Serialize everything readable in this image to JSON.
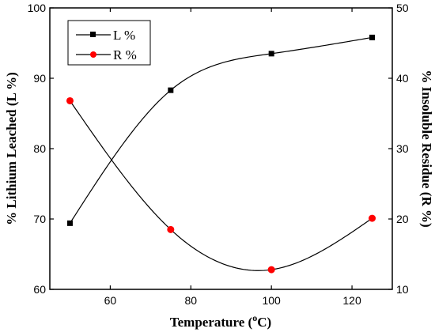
{
  "chart_data": {
    "type": "line",
    "x": [
      50,
      75,
      100,
      125
    ],
    "xlabel": "Temperature (",
    "xlabel_sup": "o",
    "xlabel_tail": "C)",
    "ylabel": "% Lithium Leached (L %)",
    "y2label": "% Insoluble Residue (R %)",
    "xlim": [
      45,
      130
    ],
    "ylim": [
      60,
      100
    ],
    "y2lim": [
      10,
      50
    ],
    "xticks": [
      60,
      80,
      100,
      120
    ],
    "yticks": [
      60,
      70,
      80,
      90,
      100
    ],
    "y2ticks": [
      10,
      20,
      30,
      40,
      50
    ],
    "grid": false,
    "legend_position": "top-left",
    "series": [
      {
        "name": "L %",
        "axis": "left",
        "marker": "square",
        "color": "#000000",
        "values": [
          69.4,
          88.3,
          93.5,
          95.8
        ]
      },
      {
        "name": "R %",
        "axis": "right",
        "marker": "circle",
        "color": "#ff0000",
        "values": [
          36.8,
          18.5,
          12.8,
          20.1
        ]
      }
    ]
  }
}
